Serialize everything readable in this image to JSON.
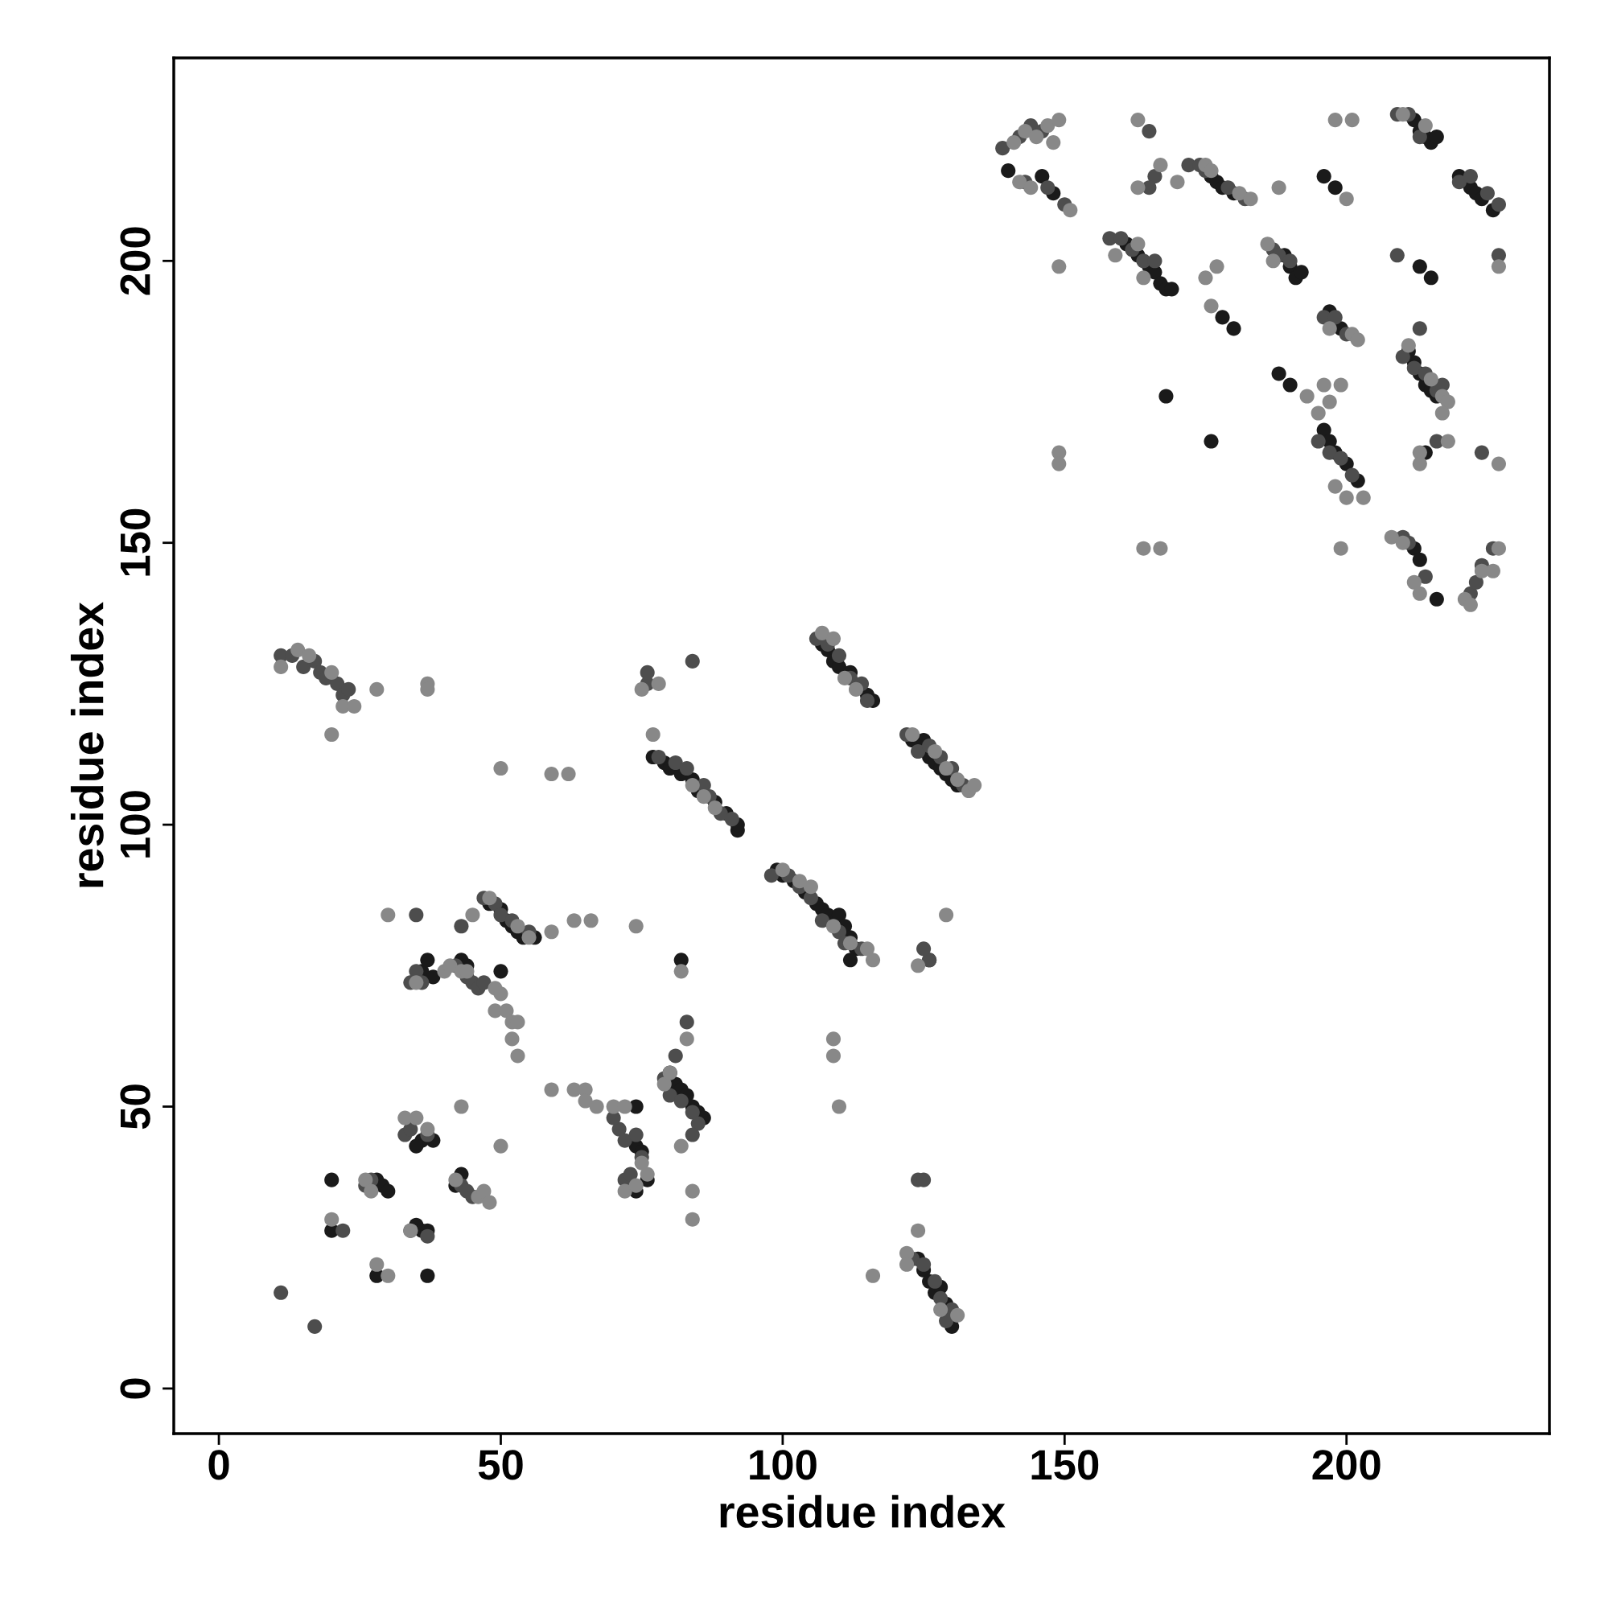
{
  "chart_data": {
    "type": "scatter",
    "xlabel": "residue index",
    "ylabel": "residue index",
    "xlim": [
      -8,
      236
    ],
    "ylim": [
      -8,
      236
    ],
    "xticks": [
      0,
      50,
      100,
      150,
      200
    ],
    "yticks": [
      0,
      50,
      100,
      150,
      200
    ],
    "grid": false,
    "marker": "circle",
    "series": [
      {
        "color": "#1a1a1a",
        "x": [
          77,
          79,
          80,
          82,
          84,
          85,
          88,
          90,
          92,
          92,
          107,
          108,
          109,
          110,
          112,
          115,
          116,
          123,
          125,
          126,
          127,
          128,
          129,
          130,
          131,
          99,
          100,
          102,
          104,
          106,
          107,
          108,
          110,
          111,
          112,
          113,
          112,
          48,
          50,
          51,
          52,
          53,
          54,
          56,
          36,
          37,
          38,
          43,
          44,
          50,
          80,
          81,
          82,
          83,
          84,
          85,
          86,
          82,
          74,
          75,
          76,
          74,
          74,
          36,
          38,
          35,
          43,
          42,
          20,
          28,
          29,
          30,
          35,
          36,
          37,
          28,
          37,
          20,
          124,
          125,
          126,
          127,
          128,
          129,
          130,
          126,
          140,
          146,
          148,
          176,
          177,
          178,
          180,
          161,
          163,
          165,
          166,
          167,
          168,
          169,
          189,
          190,
          191,
          192,
          197,
          199,
          196,
          197,
          198,
          200,
          202,
          212,
          213,
          214,
          215,
          216,
          211,
          212,
          213,
          214,
          215,
          216,
          220,
          222,
          223,
          224,
          226,
          212,
          213,
          216,
          213,
          215,
          214,
          196,
          198,
          168,
          176,
          188,
          190,
          180,
          178
        ],
        "values": [
          112,
          111,
          110,
          109,
          108,
          106,
          104,
          102,
          99,
          100,
          132,
          131,
          129,
          128,
          127,
          123,
          122,
          115,
          115,
          112,
          111,
          110,
          109,
          108,
          107,
          92,
          91,
          90,
          88,
          86,
          85,
          84,
          84,
          82,
          80,
          78,
          76,
          86,
          85,
          83,
          82,
          81,
          80,
          80,
          74,
          76,
          73,
          76,
          75,
          74,
          56,
          54,
          53,
          52,
          50,
          49,
          48,
          76,
          43,
          42,
          37,
          35,
          50,
          44,
          44,
          43,
          38,
          36,
          37,
          37,
          36,
          35,
          29,
          28,
          28,
          20,
          20,
          28,
          23,
          21,
          19,
          17,
          18,
          15,
          11,
          76,
          216,
          215,
          212,
          215,
          214,
          213,
          212,
          203,
          201,
          199,
          198,
          196,
          195,
          195,
          201,
          199,
          197,
          198,
          191,
          188,
          170,
          168,
          166,
          164,
          161,
          225,
          223,
          222,
          221,
          222,
          184,
          182,
          180,
          178,
          177,
          176,
          215,
          213,
          212,
          211,
          209,
          149,
          147,
          140,
          199,
          197,
          166,
          215,
          213,
          176,
          168,
          180,
          178,
          188,
          190
        ]
      },
      {
        "color": "#4d4d4d",
        "x": [
          11,
          13,
          15,
          17,
          18,
          19,
          21,
          22,
          23,
          76,
          76,
          84,
          78,
          81,
          83,
          86,
          87,
          89,
          91,
          106,
          108,
          110,
          112,
          114,
          115,
          122,
          124,
          126,
          128,
          130,
          132,
          98,
          101,
          103,
          105,
          107,
          110,
          111,
          114,
          47,
          49,
          50,
          52,
          55,
          34,
          35,
          36,
          42,
          44,
          45,
          46,
          47,
          35,
          43,
          79,
          80,
          82,
          84,
          85,
          81,
          83,
          84,
          71,
          72,
          74,
          75,
          72,
          73,
          70,
          33,
          34,
          37,
          43,
          44,
          45,
          26,
          27,
          34,
          37,
          11,
          17,
          22,
          123,
          125,
          127,
          128,
          130,
          129,
          124,
          125,
          126,
          125,
          139,
          142,
          144,
          146,
          143,
          147,
          150,
          165,
          166,
          165,
          172,
          174,
          175,
          179,
          182,
          158,
          160,
          162,
          164,
          166,
          187,
          188,
          190,
          196,
          198,
          200,
          195,
          197,
          199,
          201,
          209,
          211,
          213,
          220,
          222,
          225,
          227,
          210,
          212,
          214,
          216,
          217,
          209,
          210,
          211,
          214,
          222,
          223,
          224,
          226,
          213,
          216,
          227,
          224
        ],
        "values": [
          130,
          130,
          128,
          129,
          127,
          126,
          125,
          123,
          124,
          125,
          127,
          129,
          112,
          111,
          110,
          107,
          105,
          102,
          101,
          133,
          132,
          130,
          126,
          125,
          122,
          116,
          113,
          114,
          112,
          110,
          107,
          91,
          91,
          89,
          87,
          83,
          81,
          79,
          78,
          87,
          86,
          84,
          83,
          81,
          72,
          74,
          72,
          75,
          73,
          72,
          71,
          72,
          84,
          82,
          55,
          52,
          51,
          49,
          47,
          59,
          65,
          45,
          46,
          44,
          45,
          41,
          37,
          38,
          48,
          45,
          46,
          45,
          36,
          35,
          34,
          36,
          37,
          28,
          27,
          17,
          11,
          28,
          23,
          22,
          19,
          16,
          14,
          12,
          37,
          37,
          76,
          78,
          220,
          222,
          224,
          223,
          214,
          213,
          210,
          223,
          215,
          213,
          217,
          217,
          216,
          213,
          211,
          204,
          204,
          202,
          200,
          200,
          202,
          201,
          200,
          190,
          190,
          187,
          168,
          166,
          165,
          162,
          226,
          226,
          222,
          214,
          215,
          212,
          210,
          183,
          181,
          180,
          177,
          178,
          201,
          151,
          150,
          144,
          141,
          143,
          146,
          149,
          188,
          168,
          201,
          166
        ]
      },
      {
        "color": "#888888",
        "x": [
          11,
          14,
          16,
          20,
          22,
          24,
          20,
          28,
          37,
          37,
          75,
          78,
          77,
          84,
          86,
          88,
          107,
          109,
          111,
          113,
          123,
          127,
          129,
          131,
          133,
          134,
          100,
          103,
          105,
          109,
          112,
          116,
          115,
          48,
          50,
          53,
          55,
          59,
          62,
          30,
          45,
          59,
          63,
          66,
          74,
          35,
          40,
          41,
          43,
          44,
          49,
          50,
          49,
          51,
          52,
          53,
          52,
          53,
          82,
          83,
          79,
          80,
          59,
          63,
          65,
          65,
          67,
          70,
          72,
          72,
          74,
          76,
          75,
          82,
          84,
          84,
          33,
          35,
          37,
          43,
          50,
          26,
          27,
          42,
          46,
          47,
          48,
          20,
          28,
          30,
          34,
          122,
          122,
          124,
          128,
          131,
          116,
          124,
          129,
          109,
          109,
          110,
          141,
          143,
          145,
          147,
          149,
          148,
          142,
          144,
          151,
          149,
          149,
          149,
          163,
          167,
          163,
          170,
          175,
          176,
          181,
          183,
          175,
          177,
          176,
          188,
          159,
          163,
          164,
          186,
          187,
          197,
          195,
          199,
          199,
          164,
          167,
          193,
          197,
          201,
          202,
          196,
          198,
          200,
          203,
          198,
          201,
          210,
          214,
          208,
          210,
          212,
          213,
          221,
          222,
          224,
          226,
          227,
          211,
          215,
          217,
          218,
          217,
          218,
          213,
          213,
          227,
          227,
          200
        ],
        "values": [
          128,
          131,
          130,
          127,
          121,
          121,
          116,
          124,
          125,
          124,
          124,
          125,
          116,
          107,
          105,
          103,
          134,
          133,
          126,
          124,
          116,
          113,
          110,
          108,
          106,
          107,
          92,
          90,
          89,
          82,
          79,
          76,
          78,
          87,
          110,
          82,
          80,
          109,
          109,
          84,
          84,
          81,
          83,
          83,
          82,
          72,
          74,
          75,
          74,
          74,
          71,
          70,
          67,
          67,
          65,
          65,
          62,
          59,
          74,
          62,
          54,
          56,
          53,
          53,
          53,
          51,
          50,
          50,
          50,
          35,
          36,
          38,
          40,
          43,
          35,
          30,
          48,
          48,
          46,
          50,
          43,
          37,
          35,
          37,
          34,
          35,
          33,
          30,
          22,
          20,
          28,
          24,
          22,
          28,
          14,
          13,
          20,
          75,
          84,
          62,
          59,
          50,
          221,
          223,
          222,
          224,
          225,
          221,
          214,
          213,
          209,
          199,
          166,
          164,
          225,
          217,
          213,
          214,
          217,
          216,
          212,
          211,
          197,
          199,
          192,
          213,
          201,
          203,
          197,
          203,
          200,
          175,
          173,
          178,
          149,
          149,
          149,
          176,
          188,
          187,
          186,
          178,
          160,
          158,
          158,
          225,
          225,
          226,
          224,
          151,
          150,
          143,
          141,
          140,
          139,
          145,
          145,
          149,
          185,
          179,
          176,
          175,
          173,
          168,
          166,
          164,
          164,
          199,
          211
        ]
      }
    ]
  }
}
